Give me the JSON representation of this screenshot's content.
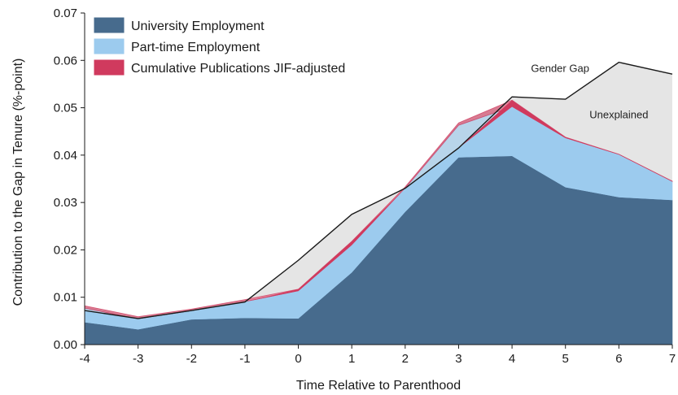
{
  "chart_data": {
    "type": "area",
    "xlabel": "Time Relative to Parenthood",
    "ylabel": "Contribution to the Gap in Tenure (%-point)",
    "x": [
      -4,
      -3,
      -2,
      -1,
      0,
      1,
      2,
      3,
      4,
      5,
      6,
      7
    ],
    "xlim": [
      -4,
      7
    ],
    "ylim": [
      0,
      0.07
    ],
    "yticks": [
      "0.00",
      "0.01",
      "0.02",
      "0.03",
      "0.04",
      "0.05",
      "0.06",
      "0.07"
    ],
    "legend_position": "top-left",
    "grid": false,
    "series": [
      {
        "name": "University Employment",
        "color": "#476b8d",
        "values": [
          0.0047,
          0.0032,
          0.0053,
          0.0056,
          0.0055,
          0.0152,
          0.028,
          0.0395,
          0.0398,
          0.0332,
          0.0311,
          0.0305
        ]
      },
      {
        "name": "Part-time Employment",
        "color": "#9ccbee",
        "values": [
          0.003,
          0.0022,
          0.0018,
          0.0035,
          0.0058,
          0.0058,
          0.005,
          0.0068,
          0.0104,
          0.0104,
          0.009,
          0.0039
        ]
      },
      {
        "name": "Cumulative Publications JIF-adjusted",
        "color": "#d03a5e",
        "values": [
          0.0005,
          0.0005,
          0.0004,
          0.0004,
          0.0004,
          0.0008,
          0.0003,
          0.0005,
          0.0014,
          0.0002,
          0.0001,
          0.0001
        ]
      }
    ],
    "gender_gap": {
      "values": [
        0.0072,
        0.0055,
        0.0072,
        0.009,
        0.0178,
        0.0275,
        0.033,
        0.0415,
        0.0523,
        0.0518,
        0.0596,
        0.0571
      ]
    },
    "annotations": [
      {
        "text": "Gender Gap",
        "x": 4.9,
        "y": 0.0576
      },
      {
        "text": "Unexplained",
        "x": 6.0,
        "y": 0.0478
      }
    ],
    "colors": {
      "unexplained_fill": "#dcdcdc",
      "gap_line": "#1a1a1a"
    }
  }
}
